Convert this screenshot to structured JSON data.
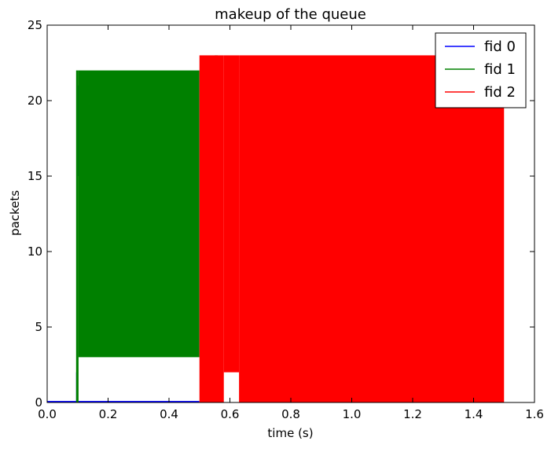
{
  "chart_data": {
    "type": "area",
    "title": "makeup of the queue",
    "xlabel": "time (s)",
    "ylabel": "packets",
    "xlim": [
      0.0,
      1.6
    ],
    "ylim": [
      0,
      25
    ],
    "x_ticks": [
      "0.0",
      "0.2",
      "0.4",
      "0.6",
      "0.8",
      "1.0",
      "1.2",
      "1.4",
      "1.6"
    ],
    "y_ticks": [
      "0",
      "5",
      "10",
      "15",
      "20",
      "25"
    ],
    "grid": false,
    "legend_position": "top-right",
    "series": [
      {
        "name": "fid 0",
        "color": "#0000ff",
        "segments": [
          {
            "x": [
              0.0,
              0.5
            ],
            "y0": [
              0,
              0
            ],
            "y1": [
              0.1,
              0.1
            ]
          },
          {
            "x": [
              0.095,
              0.095
            ],
            "y0": [
              0,
              0
            ],
            "y1": [
              2,
              2
            ]
          },
          {
            "x": [
              0.1,
              0.1
            ],
            "y0": [
              15,
              15
            ],
            "y1": [
              21,
              21
            ]
          }
        ]
      },
      {
        "name": "fid 1",
        "color": "#008000",
        "segments": [
          {
            "x": [
              0.095,
              0.103
            ],
            "y0": [
              0,
              0
            ],
            "y1": [
              22,
              22
            ]
          },
          {
            "x": [
              0.103,
              0.5
            ],
            "y0": [
              3,
              3
            ],
            "y1": [
              22,
              22
            ]
          },
          {
            "x": [
              0.55,
              0.56
            ],
            "y0": [
              16,
              16
            ],
            "y1": [
              23,
              23
            ]
          }
        ]
      },
      {
        "name": "fid 2",
        "color": "#ff0000",
        "segments": [
          {
            "x": [
              0.5,
              0.58
            ],
            "y0": [
              0,
              0
            ],
            "y1": [
              23,
              23
            ]
          },
          {
            "x": [
              0.58,
              0.63
            ],
            "y0": [
              2,
              2
            ],
            "y1": [
              23,
              23
            ]
          },
          {
            "x": [
              0.63,
              1.5
            ],
            "y0": [
              0,
              0
            ],
            "y1": [
              23,
              23
            ]
          }
        ]
      }
    ]
  }
}
